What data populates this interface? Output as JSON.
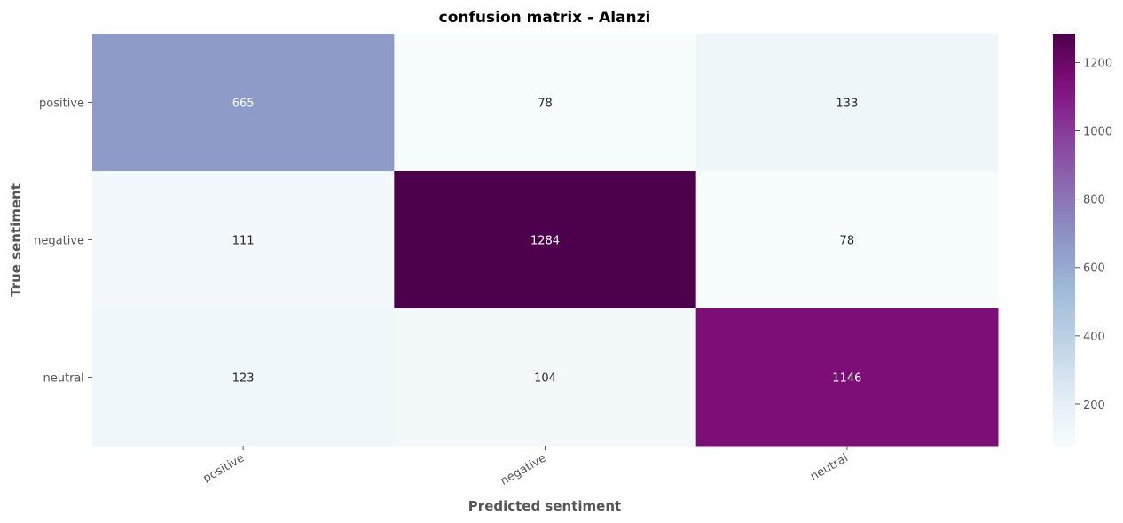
{
  "chart_data": {
    "type": "heatmap",
    "title": "confusion matrix - Alanzi",
    "xlabel": "Predicted sentiment",
    "ylabel": "True sentiment",
    "x_categories": [
      "positive",
      "negative",
      "neutral"
    ],
    "y_categories": [
      "positive",
      "negative",
      "neutral"
    ],
    "values": [
      [
        665,
        78,
        133
      ],
      [
        111,
        1284,
        78
      ],
      [
        123,
        104,
        1146
      ]
    ],
    "colormap": "BuPu",
    "colorbar": {
      "range": [
        78,
        1284
      ],
      "ticks": [
        200,
        400,
        600,
        800,
        1000,
        1200
      ]
    },
    "grid": false,
    "legend": "colorbar-right"
  }
}
